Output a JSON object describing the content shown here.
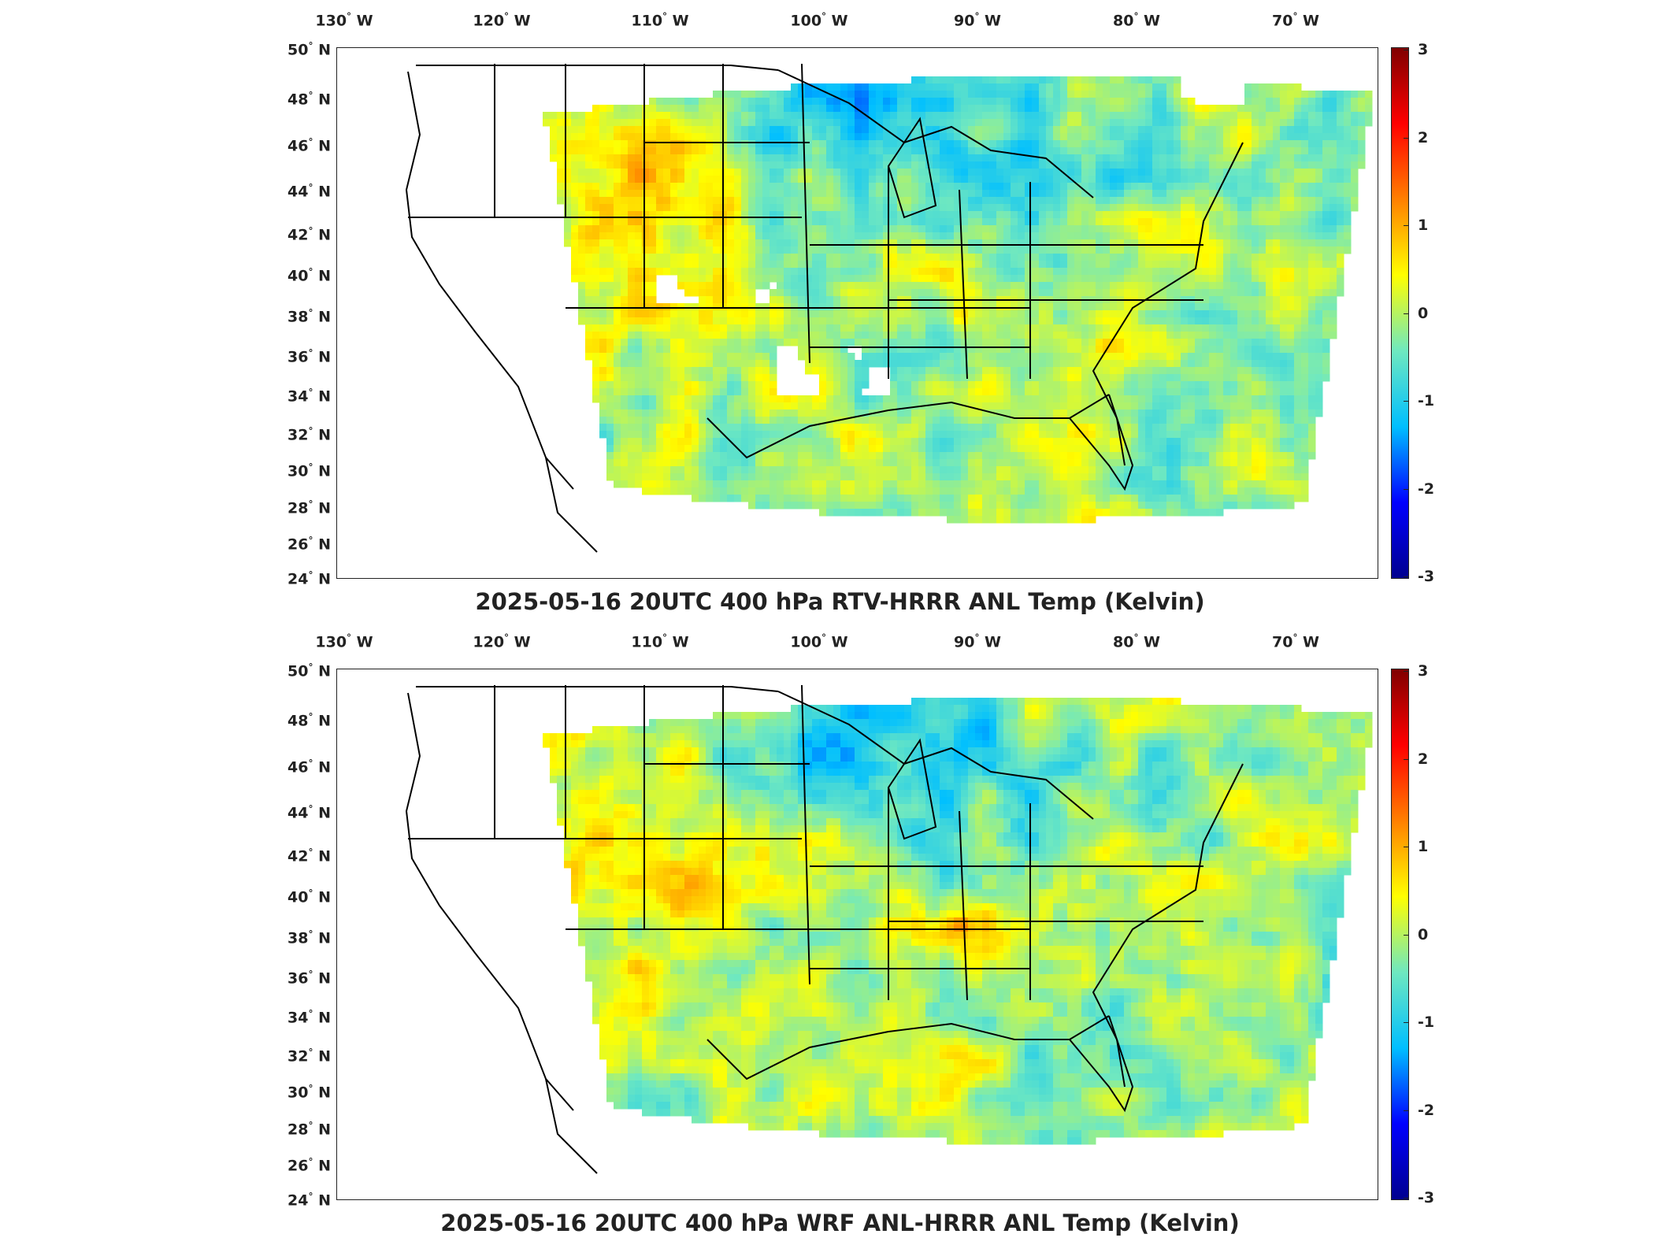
{
  "colormap": [
    "#00008f",
    "#0000ff",
    "#00bfff",
    "#6fe8c0",
    "#ffff00",
    "#ff8000",
    "#ff0000",
    "#800000"
  ],
  "longitude_labels": [
    {
      "deg": "130",
      "dir": "W"
    },
    {
      "deg": "120",
      "dir": "W"
    },
    {
      "deg": "110",
      "dir": "W"
    },
    {
      "deg": "100",
      "dir": "W"
    },
    {
      "deg": "90",
      "dir": "W"
    },
    {
      "deg": "80",
      "dir": "W"
    },
    {
      "deg": "70",
      "dir": "W"
    }
  ],
  "latitude_labels": [
    {
      "deg": "50",
      "dir": "N"
    },
    {
      "deg": "48",
      "dir": "N"
    },
    {
      "deg": "46",
      "dir": "N"
    },
    {
      "deg": "44",
      "dir": "N"
    },
    {
      "deg": "42",
      "dir": "N"
    },
    {
      "deg": "40",
      "dir": "N"
    },
    {
      "deg": "38",
      "dir": "N"
    },
    {
      "deg": "36",
      "dir": "N"
    },
    {
      "deg": "34",
      "dir": "N"
    },
    {
      "deg": "32",
      "dir": "N"
    },
    {
      "deg": "30",
      "dir": "N"
    },
    {
      "deg": "28",
      "dir": "N"
    },
    {
      "deg": "26",
      "dir": "N"
    },
    {
      "deg": "24",
      "dir": "N"
    }
  ],
  "colorbar": {
    "ticks": [
      "3",
      "2",
      "1",
      "0",
      "-1",
      "-2",
      "-3"
    ],
    "min": -3,
    "max": 3
  },
  "panels": [
    {
      "title": "2025-05-16 20UTC 400 hPa RTV-HRRR ANL Temp (Kelvin)"
    },
    {
      "title": "2025-05-16 20UTC 400 hPa WRF ANL-HRRR ANL Temp (Kelvin)"
    }
  ]
}
